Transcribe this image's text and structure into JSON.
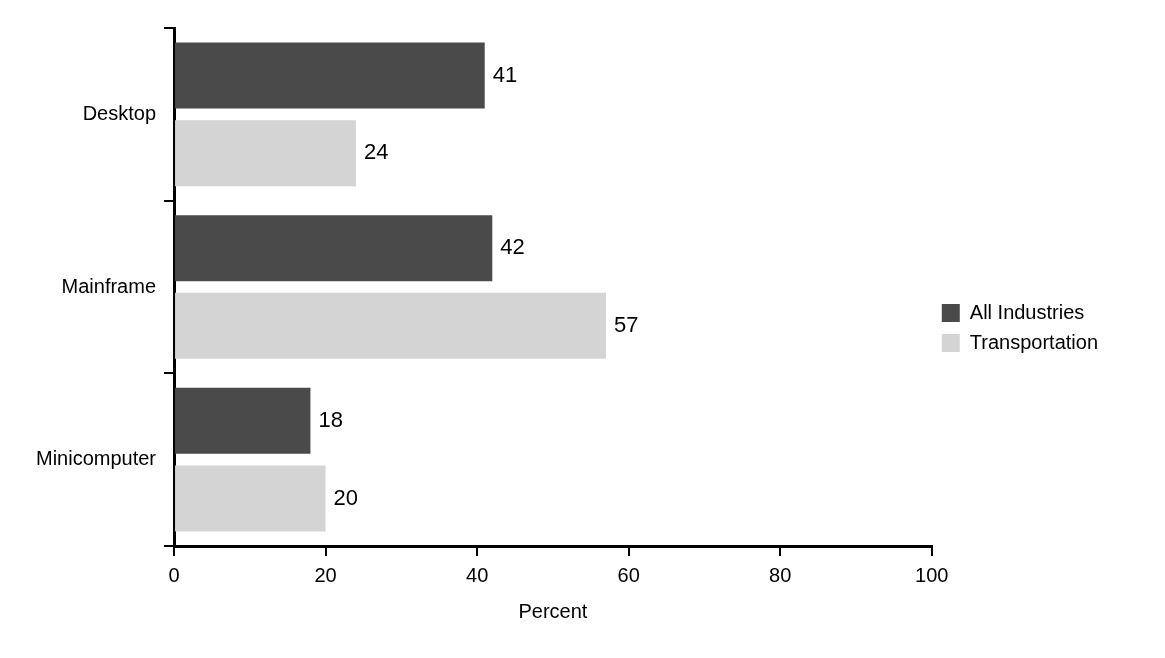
{
  "chart_data": {
    "type": "bar",
    "orientation": "horizontal",
    "categories": [
      "Desktop",
      "Mainframe",
      "Minicomputer"
    ],
    "series": [
      {
        "name": "All Industries",
        "color": "#4a4a4a",
        "values": [
          41,
          42,
          18
        ]
      },
      {
        "name": "Transportation",
        "color": "#d4d4d4",
        "values": [
          24,
          57,
          20
        ]
      }
    ],
    "xlabel": "Percent",
    "xlim": [
      0,
      100
    ],
    "xticks": [
      0,
      20,
      40,
      60,
      80,
      100
    ],
    "grid": false,
    "legend": "right",
    "data_labels": true
  }
}
